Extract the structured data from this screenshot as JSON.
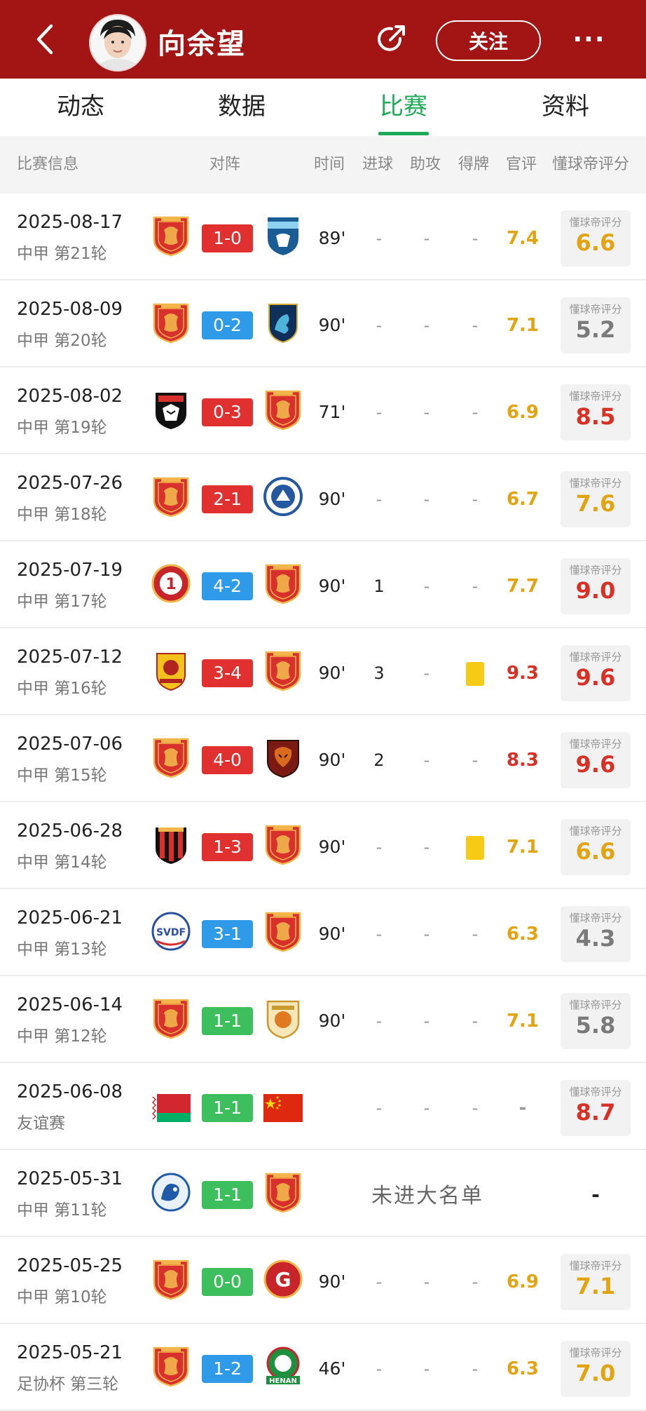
{
  "header": {
    "player_name": "向余望",
    "follow_label": "关注",
    "more_label": "···"
  },
  "tabs": [
    {
      "label": "动态"
    },
    {
      "label": "数据"
    },
    {
      "label": "比赛"
    },
    {
      "label": "资料"
    }
  ],
  "columns": {
    "info": "比赛信息",
    "matchup": "对阵",
    "time": "时间",
    "goals": "进球",
    "assists": "助攻",
    "cards": "得牌",
    "official": "官评",
    "dq": "懂球帝评分"
  },
  "dq_label": "懂球帝评分",
  "colors": {
    "header_red": "#a31515",
    "tab_green": "#1faa58",
    "score_win": "#e03030",
    "score_loss": "#2f9be8",
    "score_draw": "#3cbf5c",
    "rating_gold": "#e3a412",
    "rating_red": "#d93025",
    "rating_gray": "#7a7a7a"
  },
  "matches": [
    {
      "date": "2025-08-17",
      "comp": "中甲 第21轮",
      "home": "crest-red",
      "away": "crest-blue-shield",
      "score": "1-0",
      "result": "win",
      "minutes": "89'",
      "goals": "-",
      "assists": "-",
      "cards": "-",
      "official": "7.4",
      "dq": "6.6",
      "dq_tone": "gold"
    },
    {
      "date": "2025-08-09",
      "comp": "中甲 第20轮",
      "home": "crest-red",
      "away": "crest-navy-dragon",
      "score": "0-2",
      "result": "loss",
      "minutes": "90'",
      "goals": "-",
      "assists": "-",
      "cards": "-",
      "official": "7.1",
      "dq": "5.2",
      "dq_tone": "gray"
    },
    {
      "date": "2025-08-02",
      "comp": "中甲 第19轮",
      "home": "crest-union",
      "away": "crest-red",
      "score": "0-3",
      "result": "win",
      "minutes": "71'",
      "goals": "-",
      "assists": "-",
      "cards": "-",
      "official": "6.9",
      "dq": "8.5",
      "dq_tone": "red"
    },
    {
      "date": "2025-07-26",
      "comp": "中甲 第18轮",
      "home": "crest-red",
      "away": "crest-blue-round",
      "score": "2-1",
      "result": "win",
      "minutes": "90'",
      "goals": "-",
      "assists": "-",
      "cards": "-",
      "official": "6.7",
      "dq": "7.6",
      "dq_tone": "gold"
    },
    {
      "date": "2025-07-19",
      "comp": "中甲 第17轮",
      "home": "crest-red-circle-1",
      "away": "crest-red",
      "score": "4-2",
      "result": "loss",
      "minutes": "90'",
      "goals": "1",
      "assists": "-",
      "cards": "-",
      "official": "7.7",
      "dq": "9.0",
      "dq_tone": "red"
    },
    {
      "date": "2025-07-12",
      "comp": "中甲 第16轮",
      "home": "crest-yellow-lion",
      "away": "crest-red",
      "score": "3-4",
      "result": "win",
      "minutes": "90'",
      "goals": "3",
      "assists": "-",
      "cards": "yellow",
      "official": "9.3",
      "dq": "9.6",
      "dq_tone": "red"
    },
    {
      "date": "2025-07-06",
      "comp": "中甲 第15轮",
      "home": "crest-red",
      "away": "crest-tiger",
      "score": "4-0",
      "result": "win",
      "minutes": "90'",
      "goals": "2",
      "assists": "-",
      "cards": "-",
      "official": "8.3",
      "dq": "9.6",
      "dq_tone": "red"
    },
    {
      "date": "2025-06-28",
      "comp": "中甲 第14轮",
      "home": "crest-red-black-stripes",
      "away": "crest-red",
      "score": "1-3",
      "result": "win",
      "minutes": "90'",
      "goals": "-",
      "assists": "-",
      "cards": "yellow",
      "official": "7.1",
      "dq": "6.6",
      "dq_tone": "gold"
    },
    {
      "date": "2025-06-21",
      "comp": "中甲 第13轮",
      "home": "crest-svdf",
      "away": "crest-red",
      "score": "3-1",
      "result": "loss",
      "minutes": "90'",
      "goals": "-",
      "assists": "-",
      "cards": "-",
      "official": "6.3",
      "dq": "4.3",
      "dq_tone": "gray"
    },
    {
      "date": "2025-06-14",
      "comp": "中甲 第12轮",
      "home": "crest-red",
      "away": "crest-gold",
      "score": "1-1",
      "result": "draw",
      "minutes": "90'",
      "goals": "-",
      "assists": "-",
      "cards": "-",
      "official": "7.1",
      "dq": "5.8",
      "dq_tone": "gray"
    },
    {
      "date": "2025-06-08",
      "comp": "友谊赛",
      "home": "flag-belarus",
      "away": "flag-china",
      "score": "1-1",
      "result": "draw",
      "minutes": "",
      "goals": "-",
      "assists": "-",
      "cards": "-",
      "official": "-",
      "dq": "8.7",
      "dq_tone": "red"
    },
    {
      "date": "2025-05-31",
      "comp": "中甲 第11轮",
      "home": "crest-blue-dragon",
      "away": "crest-red",
      "score": "1-1",
      "result": "draw",
      "not_in_squad": "未进大名单",
      "dq_dash": "-"
    },
    {
      "date": "2025-05-25",
      "comp": "中甲 第10轮",
      "home": "crest-red",
      "away": "crest-red-g",
      "score": "0-0",
      "result": "draw",
      "minutes": "90'",
      "goals": "-",
      "assists": "-",
      "cards": "-",
      "official": "6.9",
      "dq": "7.1",
      "dq_tone": "gold"
    },
    {
      "date": "2025-05-21",
      "comp": "足协杯 第三轮",
      "home": "crest-red",
      "away": "crest-henan",
      "score": "1-2",
      "result": "loss",
      "minutes": "46'",
      "goals": "-",
      "assists": "-",
      "cards": "-",
      "official": "6.3",
      "dq": "7.0",
      "dq_tone": "gold"
    }
  ]
}
